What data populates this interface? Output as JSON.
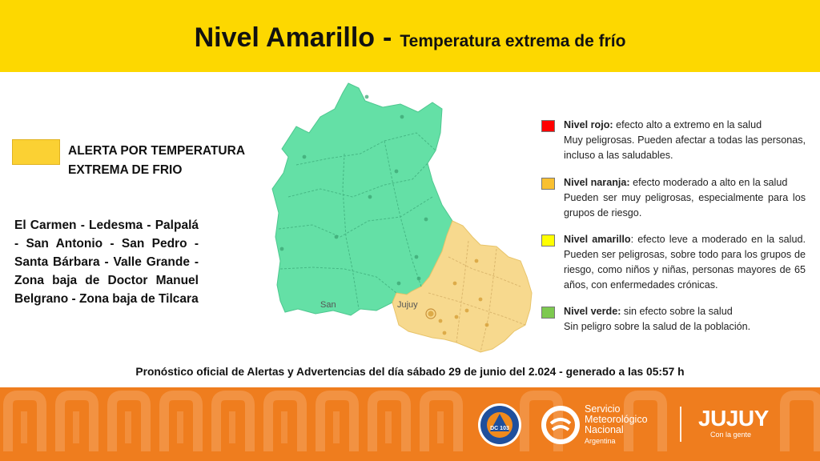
{
  "header": {
    "title": "Nivel Amarillo",
    "separator": "-",
    "subtitle": "Temperatura extrema de frío",
    "background_color": "#fdd800"
  },
  "alert": {
    "label_line1": "ALERTA POR TEMPERATURA",
    "label_line2": "EXTREMA DE FRIO",
    "swatch_color": "#fbd133"
  },
  "zones_text": "El Carmen - Ledesma - Palpalá - San Antonio - San Pedro - Santa Bárbara - Valle Grande - Zona baja de Doctor Manuel Belgrano - Zona baja de Tilcara",
  "map": {
    "label_jujuy": "Jujuy",
    "label_san": "San",
    "alert_area_color": "#f7d98e",
    "other_area_color": "#64e0a6"
  },
  "legend": [
    {
      "title": "Nivel rojo:",
      "desc": " efecto alto a extremo en la salud",
      "detail": "Muy peligrosas. Pueden afectar a todas las personas, incluso a las saludables.",
      "color": "#ff0000"
    },
    {
      "title": "Nivel naranja:",
      "desc": " efecto moderado a alto en la salud",
      "detail": "Pueden ser muy peligrosas, especialmente para los grupos de riesgo.",
      "color": "#f9c031"
    },
    {
      "title": "Nivel amarillo",
      "desc": ": efecto leve a moderado en la salud. Pueden ser peligrosas, sobre todo para los grupos de riesgo, como niños y niñas, personas mayores de 65 años, con enfermedades crónicas.",
      "detail": "",
      "color": "#ffff00"
    },
    {
      "title": "Nivel verde:",
      "desc": " sin efecto sobre la salud",
      "detail": "Sin peligro sobre la salud de la población.",
      "color": "#7dc94f"
    }
  ],
  "forecast": "Pronóstico oficial de Alertas y Advertencias del día sábado 29 de junio del 2.024 - generado a las 05:57 h",
  "footer": {
    "background_color": "#ef7d1e",
    "seal_text": "DC 103",
    "smn_line1": "Servicio",
    "smn_line2": "Meteorológico",
    "smn_line3": "Nacional",
    "smn_line4": "Argentina",
    "jujuy_logo": "JUJUY",
    "jujuy_tagline": "Con la gente"
  }
}
